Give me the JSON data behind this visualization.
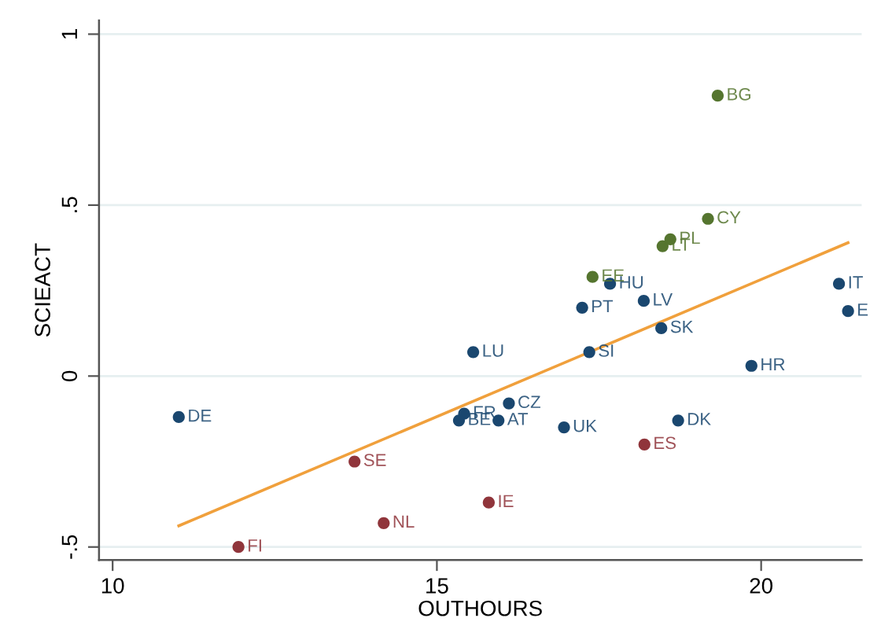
{
  "chart_data": {
    "type": "scatter",
    "xlabel": "OUTHOURS",
    "ylabel": "SCIEACT",
    "xlim": [
      9.79,
      21.55
    ],
    "ylim": [
      -0.538,
      1.04
    ],
    "xticks": [
      10,
      15,
      20
    ],
    "yticks": [
      {
        "value": -0.5,
        "label": "-.5"
      },
      0,
      {
        "value": 0.5,
        "label": ".5"
      },
      1
    ],
    "grid": "y",
    "series": [
      {
        "color": "#1a476f",
        "marker": "circle",
        "x": [
          11.02,
          15.42,
          15.34,
          15.95,
          16.11,
          15.56,
          16.96,
          17.35,
          18.72,
          19.85,
          18.46,
          17.24,
          18.19,
          17.67,
          21.2,
          21.34
        ],
        "values": [
          -0.12,
          -0.11,
          -0.13,
          -0.13,
          -0.08,
          0.07,
          -0.15,
          0.07,
          -0.13,
          0.03,
          0.14,
          0.2,
          0.22,
          0.27,
          0.27,
          0.19
        ],
        "value_labels": [
          "DE",
          "FR",
          "BE",
          "AT",
          "CZ",
          "LU",
          "UK",
          "SI",
          "DK",
          "HR",
          "SK",
          "PT",
          "LV",
          "HU",
          "IT",
          "E"
        ]
      },
      {
        "color": "#55752f",
        "marker": "circle",
        "x": [
          17.4,
          18.48,
          18.6,
          19.18,
          19.33
        ],
        "values": [
          0.29,
          0.38,
          0.4,
          0.46,
          0.82
        ],
        "value_labels": [
          "EE",
          "LT",
          "PL",
          "CY",
          "BG"
        ]
      },
      {
        "color": "#90353b",
        "marker": "circle",
        "x": [
          11.94,
          13.73,
          14.18,
          15.8,
          18.2
        ],
        "values": [
          -0.5,
          -0.25,
          -0.43,
          -0.37,
          -0.2
        ],
        "value_labels": [
          "FI",
          "SE",
          "NL",
          "IE",
          "ES"
        ]
      },
      {
        "type": "line",
        "color": "#f0a03c",
        "x": [
          11.02,
          21.34
        ],
        "values": [
          -0.438,
          0.39
        ],
        "line_style": "solid"
      }
    ]
  }
}
